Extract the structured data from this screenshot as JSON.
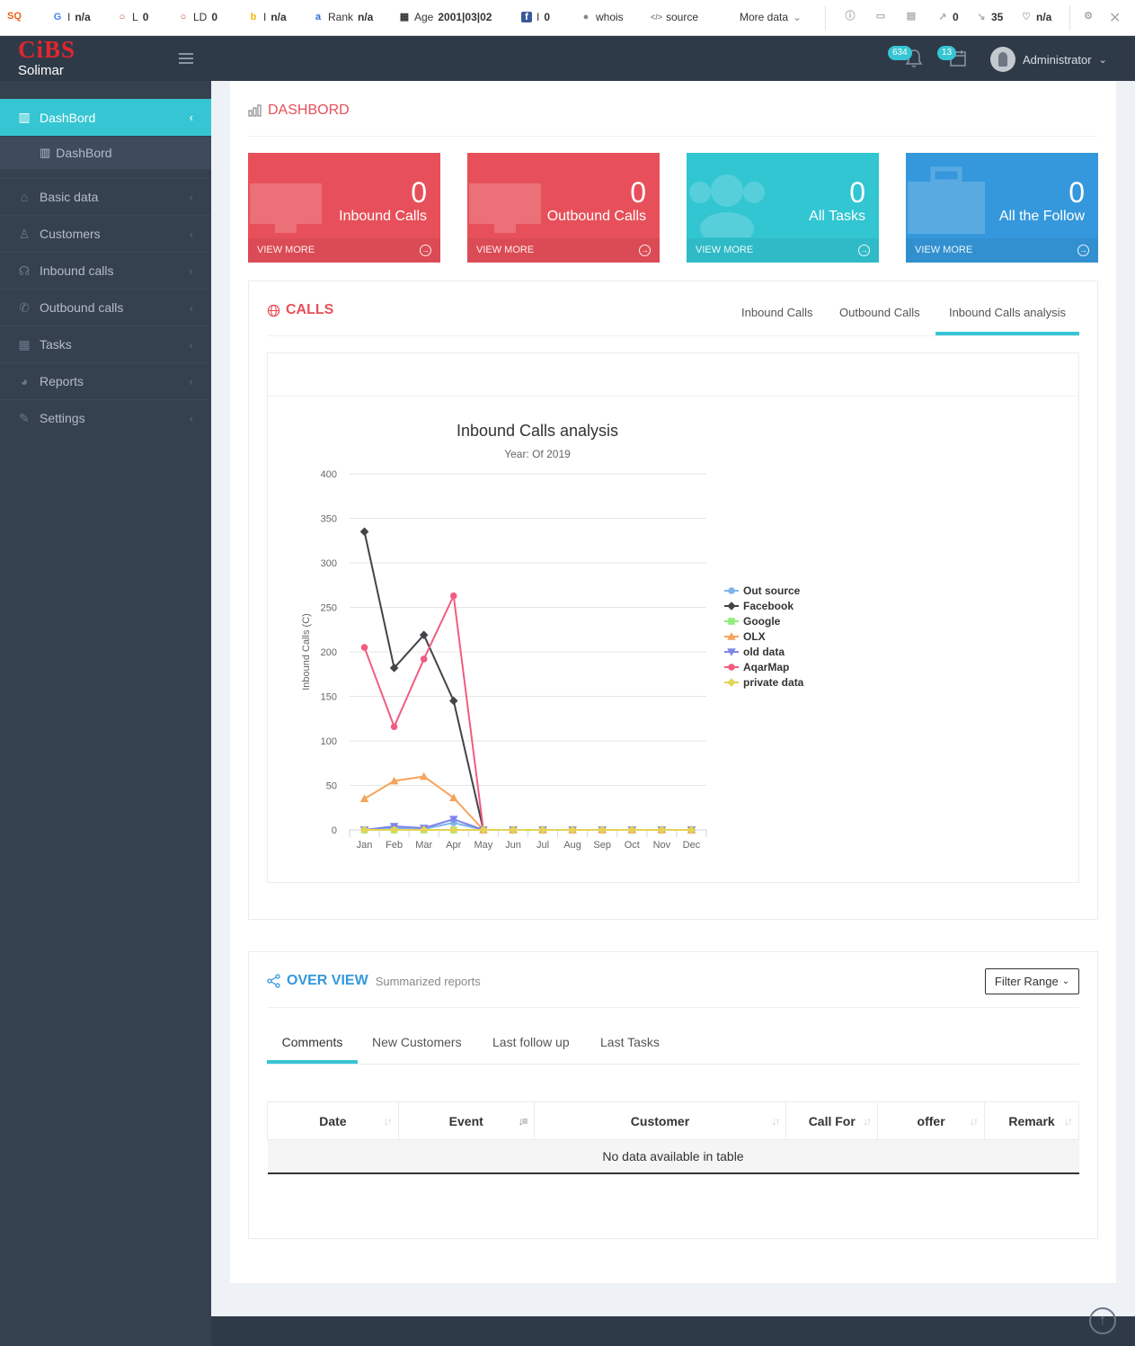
{
  "seo_toolbar": {
    "google": "n/a",
    "l": "0",
    "ld": "0",
    "bing": "n/a",
    "rank_label": "Rank",
    "rank": "n/a",
    "age_label": "Age",
    "age": "2001|03|02",
    "facebook": "0",
    "whois": "whois",
    "source": "source",
    "more_data": "More data",
    "external_links": "0",
    "internal_links": "35",
    "trust": "n/a"
  },
  "header": {
    "logo": "CiBS",
    "company": "Solimar",
    "notifications_count": "634",
    "calendar_count": "13",
    "user_name": "Administrator"
  },
  "sidebar": {
    "items": [
      {
        "label": "DashBord",
        "icon": "bar-chart-icon"
      },
      {
        "label": "Basic data",
        "icon": "home-icon"
      },
      {
        "label": "Customers",
        "icon": "user-icon"
      },
      {
        "label": "Inbound calls",
        "icon": "headset-icon"
      },
      {
        "label": "Outbound calls",
        "icon": "phone-icon"
      },
      {
        "label": "Tasks",
        "icon": "calendar-icon"
      },
      {
        "label": "Reports",
        "icon": "pie-chart-icon"
      },
      {
        "label": "Settings",
        "icon": "wrench-icon"
      }
    ],
    "sub_item": "DashBord"
  },
  "page": {
    "title": "DASHBORD"
  },
  "stats": [
    {
      "value": "0",
      "label": "Inbound Calls",
      "more": "VIEW MORE",
      "color": "#e7505a"
    },
    {
      "value": "0",
      "label": "Outbound Calls",
      "more": "VIEW MORE",
      "color": "#e7505a"
    },
    {
      "value": "0",
      "label": "All Tasks",
      "more": "VIEW MORE",
      "color": "#32c5d2"
    },
    {
      "value": "0",
      "label": "All the Follow",
      "more": "VIEW MORE",
      "color": "#3598dc"
    }
  ],
  "calls": {
    "title": "CALLS",
    "tabs": [
      "Inbound Calls",
      "Outbound Calls",
      "Inbound Calls analysis"
    ],
    "active_tab": "Inbound Calls analysis"
  },
  "chart_data": {
    "type": "line",
    "title": "Inbound Calls analysis",
    "subtitle": "Year: Of 2019",
    "ylabel": "Inbound Calls (C)",
    "xlabel": "",
    "ylim": [
      0,
      400
    ],
    "yticks": [
      0,
      50,
      100,
      150,
      200,
      250,
      300,
      350,
      400
    ],
    "categories": [
      "Jan",
      "Feb",
      "Mar",
      "Apr",
      "May",
      "Jun",
      "Jul",
      "Aug",
      "Sep",
      "Oct",
      "Nov",
      "Dec"
    ],
    "legend_position": "right",
    "series": [
      {
        "name": "Out source",
        "color": "#7cb5ec",
        "marker": "circle",
        "values": [
          0,
          2,
          1,
          8,
          0,
          0,
          0,
          0,
          0,
          0,
          0,
          0
        ]
      },
      {
        "name": "Facebook",
        "color": "#434348",
        "marker": "diamond",
        "values": [
          335,
          182,
          219,
          145,
          0,
          0,
          0,
          0,
          0,
          0,
          0,
          0
        ]
      },
      {
        "name": "Google",
        "color": "#90ed7d",
        "marker": "square",
        "values": [
          0,
          0,
          0,
          0,
          0,
          0,
          0,
          0,
          0,
          0,
          0,
          0
        ]
      },
      {
        "name": "OLX",
        "color": "#f7a35c",
        "marker": "triangle",
        "values": [
          35,
          55,
          60,
          36,
          0,
          0,
          0,
          0,
          0,
          0,
          0,
          0
        ]
      },
      {
        "name": "old data",
        "color": "#8085e9",
        "marker": "triangle-down",
        "values": [
          0,
          4,
          2,
          12,
          0,
          0,
          0,
          0,
          0,
          0,
          0,
          0
        ]
      },
      {
        "name": "AqarMap",
        "color": "#f15c80",
        "marker": "circle",
        "values": [
          205,
          116,
          192,
          263,
          0,
          0,
          0,
          0,
          0,
          0,
          0,
          0
        ]
      },
      {
        "name": "private data",
        "color": "#e4d354",
        "marker": "diamond",
        "values": [
          0,
          0,
          0,
          0,
          0,
          0,
          0,
          0,
          0,
          0,
          0,
          0
        ]
      }
    ]
  },
  "overview": {
    "title": "OVER VIEW",
    "subtitle": "Summarized reports",
    "filter_button": "Filter Range",
    "tabs": [
      "Comments",
      "New Customers",
      "Last follow up",
      "Last Tasks"
    ],
    "active_tab": "Comments",
    "table": {
      "columns": [
        "Date",
        "Event",
        "Customer",
        "Call For",
        "offer",
        "Remark"
      ],
      "empty_message": "No data available in table"
    }
  }
}
